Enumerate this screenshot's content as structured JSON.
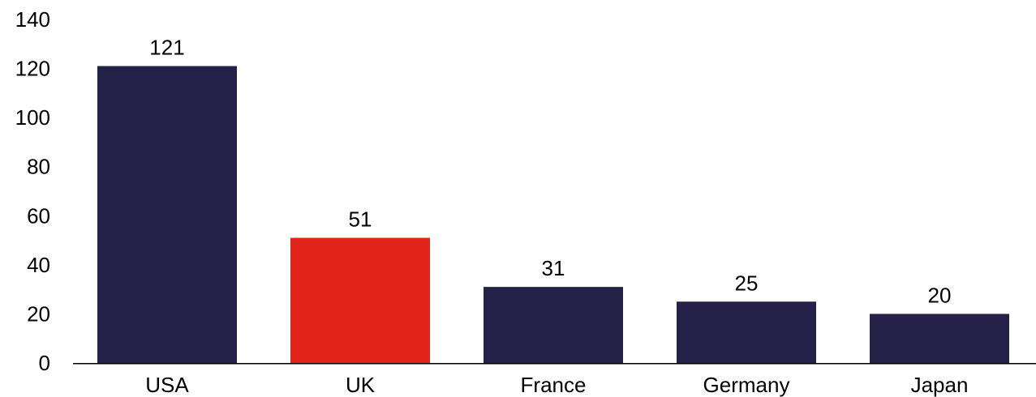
{
  "chart_data": {
    "type": "bar",
    "title": "",
    "xlabel": "",
    "ylabel": "",
    "categories": [
      "USA",
      "UK",
      "France",
      "Germany",
      "Japan"
    ],
    "values": [
      121,
      51,
      31,
      25,
      20
    ],
    "data_labels": [
      "121",
      "51",
      "31",
      "25",
      "20"
    ],
    "ylim": [
      0,
      140
    ],
    "yticks": [
      0,
      20,
      40,
      60,
      80,
      100,
      120,
      140
    ],
    "grid": false,
    "bar_colors": [
      "#252149",
      "#e2231a",
      "#252149",
      "#252149",
      "#252149"
    ]
  }
}
